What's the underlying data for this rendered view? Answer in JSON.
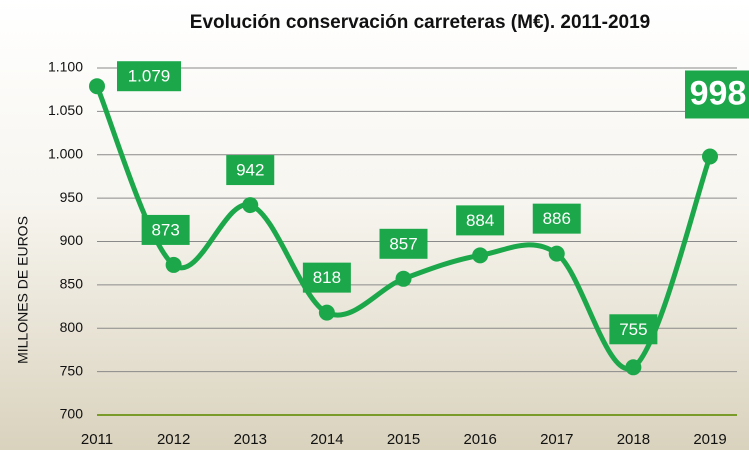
{
  "chart_data": {
    "type": "line",
    "title": "Evolución conservación carreteras (M€). 2011-2019",
    "y_label": "MILLONES DE EUROS",
    "categories": [
      "2011",
      "2012",
      "2013",
      "2014",
      "2015",
      "2016",
      "2017",
      "2018",
      "2019"
    ],
    "values": [
      1079,
      873,
      942,
      818,
      857,
      884,
      886,
      755,
      998
    ],
    "value_labels": [
      "1.079",
      "873",
      "942",
      "818",
      "857",
      "884",
      "886",
      "755",
      "998"
    ],
    "color": "#1ca84a",
    "ylim": [
      700,
      1100
    ],
    "yticks": [
      700,
      750,
      800,
      850,
      900,
      950,
      {
        "value": 1000,
        "label": "1.000"
      },
      {
        "value": 1050,
        "label": "1.050"
      },
      {
        "value": 1100,
        "label": "1.100"
      }
    ],
    "grid": true
  }
}
